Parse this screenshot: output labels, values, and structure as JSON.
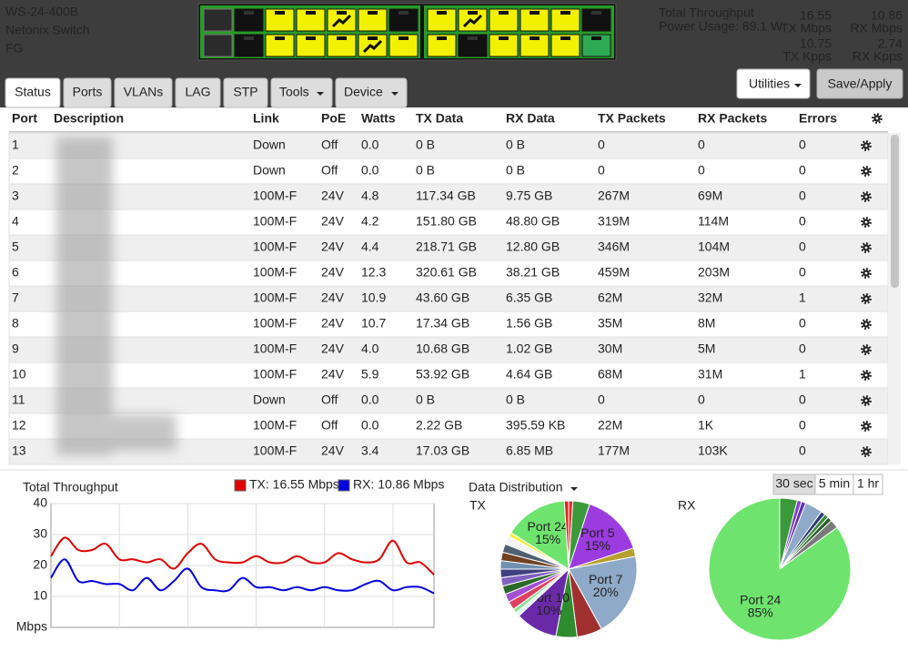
{
  "header": {
    "model": "WS-24-400B",
    "name": "Netonix Switch",
    "location": "FG",
    "throughput_label": "Total Throughput",
    "power": "Power Usage: 89.1 W",
    "stats": [
      {
        "value": "16.55",
        "unit": "TX Mbps"
      },
      {
        "value": "10.86",
        "unit": "RX Mbps"
      },
      {
        "value": "10.75",
        "unit": "TX Kpps"
      },
      {
        "value": "2.74",
        "unit": "RX Kpps"
      }
    ]
  },
  "tabs": [
    "Status",
    "Ports",
    "VLANs",
    "LAG",
    "STP",
    "Tools",
    "Device"
  ],
  "buttons": [
    "Utilities",
    "Save/Apply"
  ],
  "table": {
    "columns": [
      "Port",
      "Description",
      "Link",
      "PoE",
      "Watts",
      "TX Data",
      "RX Data",
      "TX Packets",
      "RX Packets",
      "Errors"
    ],
    "rows": [
      [
        "1",
        "Down",
        "Off",
        "0.0",
        "0 B",
        "0 B",
        "0",
        "0",
        "0"
      ],
      [
        "2",
        "Down",
        "Off",
        "0.0",
        "0 B",
        "0 B",
        "0",
        "0",
        "0"
      ],
      [
        "3",
        "100M-F",
        "24V",
        "4.8",
        "117.34 GB",
        "9.75 GB",
        "267M",
        "69M",
        "0"
      ],
      [
        "4",
        "100M-F",
        "24V",
        "4.2",
        "151.80 GB",
        "48.80 GB",
        "319M",
        "114M",
        "0"
      ],
      [
        "5",
        "100M-F",
        "24V",
        "4.4",
        "218.71 GB",
        "12.80 GB",
        "346M",
        "104M",
        "0"
      ],
      [
        "6",
        "100M-F",
        "24V",
        "12.3",
        "320.61 GB",
        "38.21 GB",
        "459M",
        "203M",
        "0"
      ],
      [
        "7",
        "100M-F",
        "24V",
        "10.9",
        "43.60 GB",
        "6.35 GB",
        "62M",
        "32M",
        "1"
      ],
      [
        "8",
        "100M-F",
        "24V",
        "10.7",
        "17.34 GB",
        "1.56 GB",
        "35M",
        "8M",
        "0"
      ],
      [
        "9",
        "100M-F",
        "24V",
        "4.0",
        "10.68 GB",
        "1.02 GB",
        "30M",
        "5M",
        "0"
      ],
      [
        "10",
        "100M-F",
        "24V",
        "5.9",
        "53.92 GB",
        "4.64 GB",
        "68M",
        "31M",
        "1"
      ],
      [
        "11",
        "Down",
        "Off",
        "0.0",
        "0 B",
        "0 B",
        "0",
        "0",
        "0"
      ],
      [
        "12",
        "100M-F",
        "Off",
        "0.0",
        "2.22 GB",
        "395.59 KB",
        "22M",
        "1K",
        "0"
      ],
      [
        "13",
        "100M-F",
        "24V",
        "3.4",
        "17.03 GB",
        "6.85 MB",
        "177M",
        "103K",
        "0"
      ]
    ],
    "poe_colors": [
      "#444",
      "#444",
      "#1e9a1e",
      "#1e9a1e",
      "#1e9a1e",
      "#1e9a1e",
      "#1e9a1e",
      "#1e9a1e",
      "#1e9a1e",
      "#1e9a1e",
      "#444",
      "#444",
      "#1e9a1e"
    ]
  },
  "distribution": {
    "title": "Data Distribution",
    "ranges": [
      "30 sec",
      "5 min",
      "1 hr"
    ]
  },
  "chart_data": [
    {
      "type": "line",
      "title": "Total Throughput",
      "y_label": "Mbps",
      "ylim": [
        0,
        40
      ],
      "yticks": [
        10,
        20,
        30,
        40
      ],
      "grid": true,
      "series": [
        {
          "name": "TX: 16.55 Mbps",
          "color": "#e00000",
          "values": [
            23,
            29,
            25,
            25,
            27,
            22,
            22,
            21,
            22,
            19,
            24,
            27,
            22,
            21,
            21,
            23,
            21,
            21,
            23,
            21,
            21,
            24,
            22,
            21,
            22,
            28,
            21,
            21,
            17
          ]
        },
        {
          "name": "RX: 10.86 Mbps",
          "color": "#0000e0",
          "values": [
            16,
            22,
            15,
            15,
            14,
            14,
            12,
            16,
            12,
            15,
            19,
            13,
            12,
            12,
            16,
            13,
            13,
            12,
            13,
            12,
            13,
            12,
            12,
            14,
            15,
            12,
            13,
            13,
            11
          ]
        }
      ]
    },
    {
      "type": "pie",
      "title": "TX",
      "categories": [
        null,
        null,
        "Port 5",
        null,
        "Port 7",
        null,
        null,
        "Port 10",
        null,
        null,
        null,
        null,
        null,
        null,
        null,
        null,
        null,
        null,
        null,
        null,
        "Port 24",
        null
      ],
      "values": [
        1,
        4,
        15,
        2,
        20,
        6,
        5,
        10,
        1,
        1,
        2,
        2,
        2,
        2,
        2,
        2,
        2,
        2,
        2,
        1,
        15,
        1
      ],
      "value_labels": [
        null,
        null,
        "15%",
        null,
        "20%",
        null,
        null,
        "10%",
        null,
        null,
        null,
        null,
        null,
        null,
        null,
        null,
        null,
        null,
        null,
        null,
        "15%",
        null
      ],
      "colors": [
        "#e03030",
        "#3a9a3a",
        "#9b3be0",
        "#b8a030",
        "#8eaac8",
        "#a03030",
        "#2e8b2e",
        "#6a2aa8",
        "#e0f4f4",
        "#90e090",
        "#e04060",
        "#a050d0",
        "#2a6a2a",
        "#8060c0",
        "#404080",
        "#7090b0",
        "#704020",
        "#506070",
        "#f4f4f4",
        "#f0f040",
        "#6ee46e",
        "#e02020"
      ]
    },
    {
      "type": "pie",
      "title": "RX",
      "categories": [
        null,
        null,
        null,
        null,
        null,
        null,
        null,
        null,
        "Port 24"
      ],
      "values": [
        4,
        1,
        1,
        4,
        1,
        1,
        1,
        2,
        85
      ],
      "value_labels": [
        null,
        null,
        null,
        null,
        null,
        null,
        null,
        null,
        "85%"
      ],
      "colors": [
        "#3a9a3a",
        "#8040d0",
        "#6030b0",
        "#8eaac8",
        "#2a3a70",
        "#3a8a3a",
        "#2a5a2a",
        "#7a7a7a",
        "#6ee46e"
      ]
    }
  ]
}
